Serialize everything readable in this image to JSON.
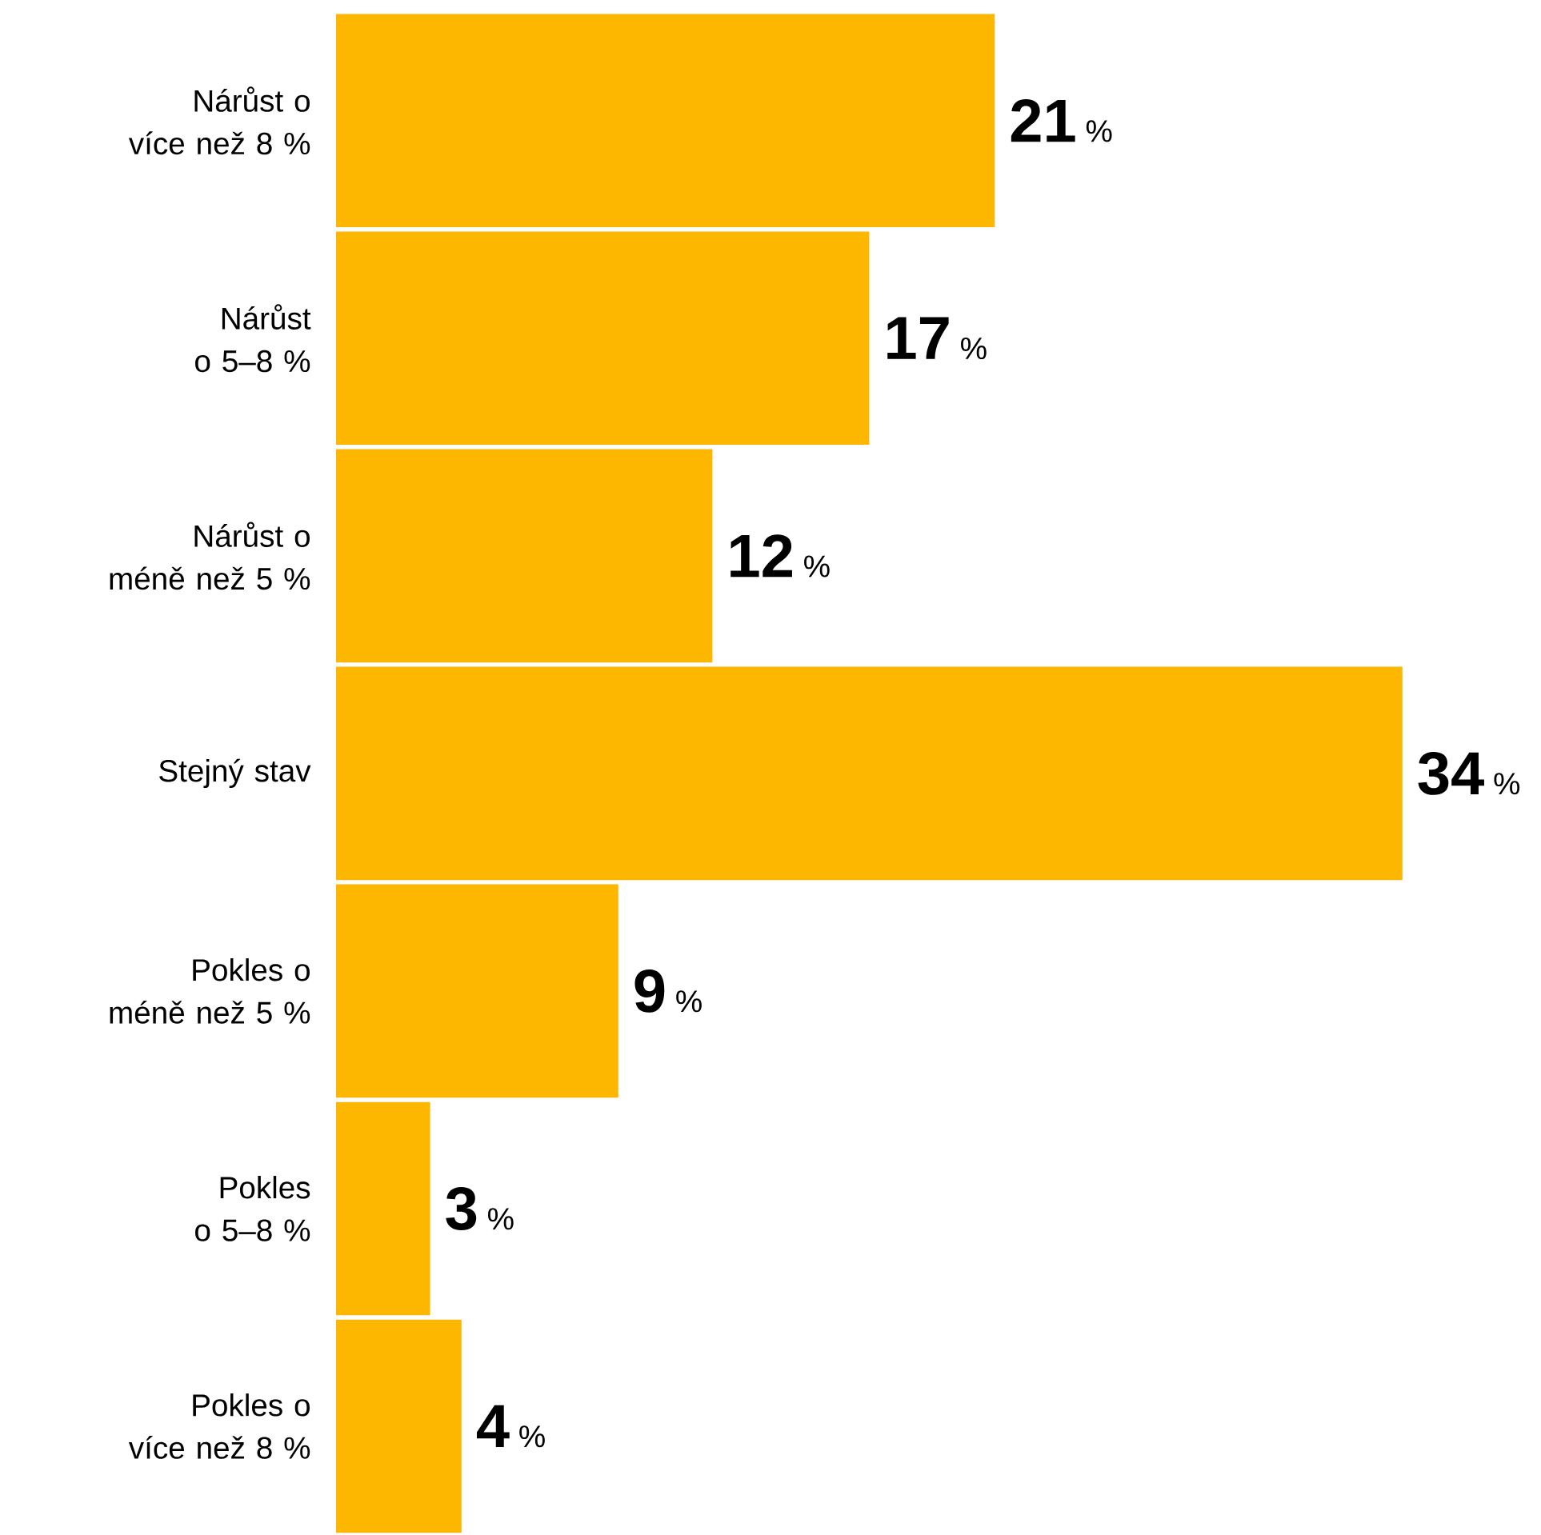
{
  "chart_data": {
    "type": "bar",
    "orientation": "horizontal",
    "categories": [
      "Nárůst o více než 8 %",
      "Nárůst o 5–8 %",
      "Nárůst o méně než 5 %",
      "Stejný stav",
      "Pokles o méně než 5 %",
      "Pokles o 5–8 %",
      "Pokles o více než 8 %"
    ],
    "values": [
      21,
      17,
      12,
      34,
      9,
      3,
      4
    ],
    "value_labels": [
      "**21** %",
      "**17** %",
      "**12** %",
      "**34** %",
      "**9** %",
      "**3** %",
      "**4** %"
    ],
    "color": "#fdb700"
  }
}
